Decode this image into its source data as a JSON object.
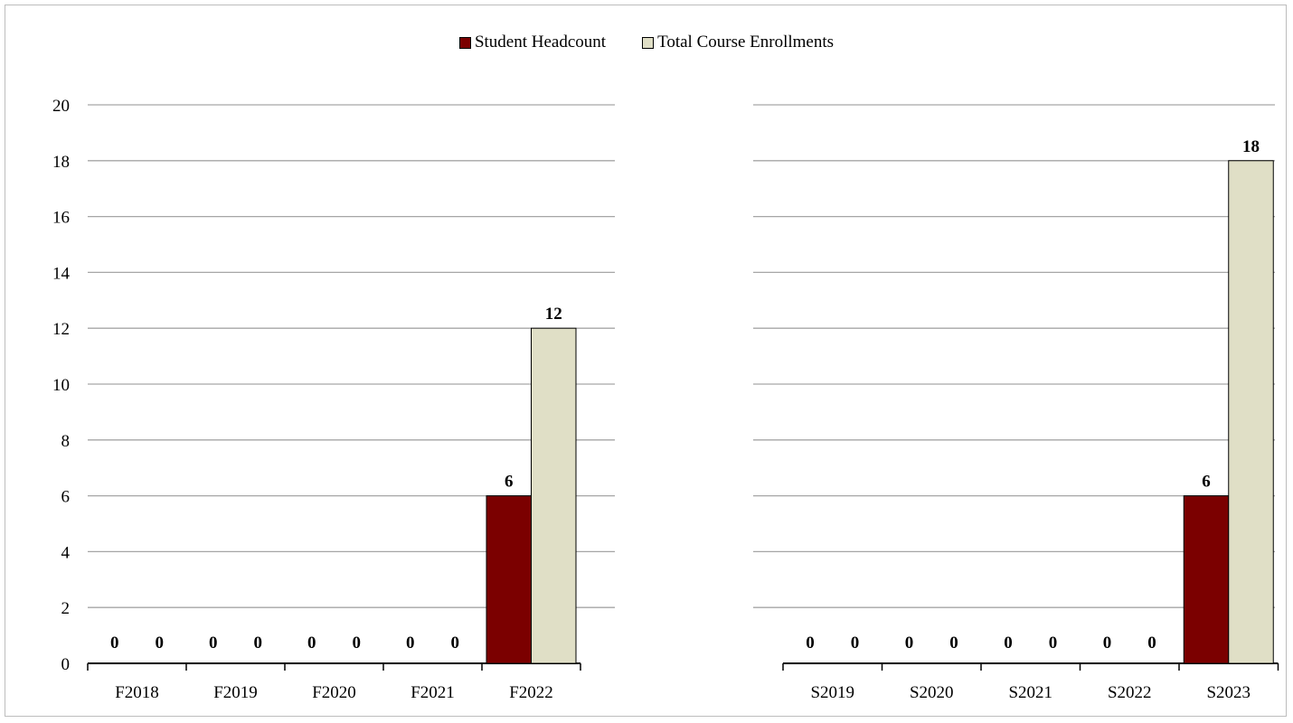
{
  "colors": {
    "headcount": "#7B0000",
    "enrollments": "#E0DFC6",
    "grid": "#A6A6A6",
    "axis": "#000000"
  },
  "legend": [
    {
      "label": "Student Headcount",
      "color": "#7B0000"
    },
    {
      "label": "Total Course Enrollments",
      "color": "#E0DFC6"
    }
  ],
  "chart_data": [
    {
      "type": "bar",
      "categories": [
        "F2018",
        "F2019",
        "F2020",
        "F2021",
        "F2022"
      ],
      "series": [
        {
          "name": "Student Headcount",
          "values": [
            0,
            0,
            0,
            0,
            6
          ]
        },
        {
          "name": "Total Course Enrollments",
          "values": [
            0,
            0,
            0,
            0,
            12
          ]
        }
      ],
      "ylim": [
        0,
        20
      ],
      "yticks": [
        "0",
        "2",
        "4",
        "6",
        "8",
        "10",
        "12",
        "14",
        "16",
        "18",
        "20"
      ],
      "grid": true
    },
    {
      "type": "bar",
      "categories": [
        "S2019",
        "S2020",
        "S2021",
        "S2022",
        "S2023"
      ],
      "series": [
        {
          "name": "Student Headcount",
          "values": [
            0,
            0,
            0,
            0,
            6
          ]
        },
        {
          "name": "Total Course Enrollments",
          "values": [
            0,
            0,
            0,
            0,
            18
          ]
        }
      ],
      "ylim": [
        0,
        20
      ],
      "grid": true
    }
  ]
}
